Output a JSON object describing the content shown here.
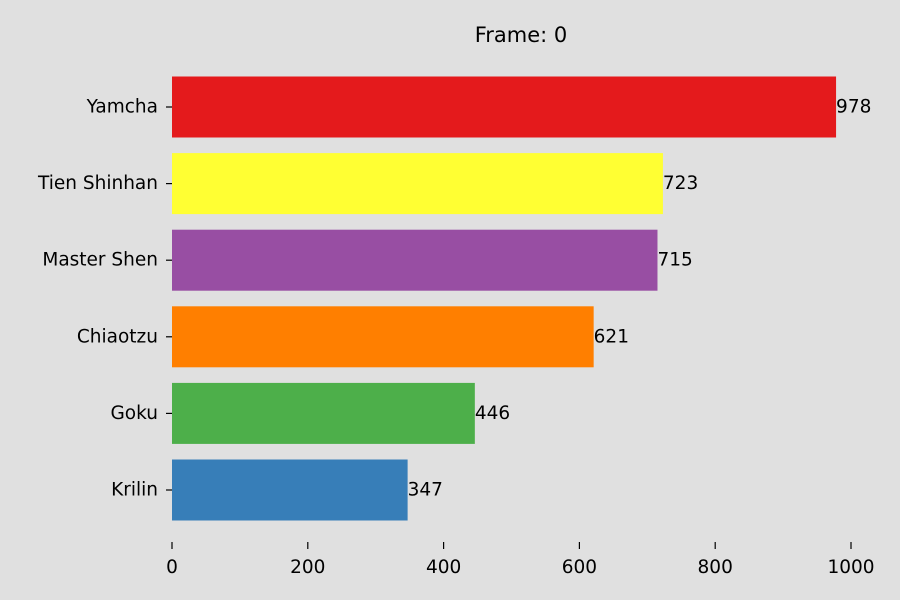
{
  "chart_data": {
    "type": "bar",
    "orientation": "horizontal",
    "title": "Frame: 0",
    "xlabel": "",
    "ylabel": "",
    "categories": [
      "Yamcha",
      "Tien Shinhan",
      "Master Shen",
      "Chiaotzu",
      "Goku",
      "Krilin"
    ],
    "values": [
      978,
      723,
      715,
      621,
      446,
      347
    ],
    "colors": [
      "#e41a1c",
      "#ffff33",
      "#984ea3",
      "#ff7f00",
      "#4daf4a",
      "#377eb8"
    ],
    "xlim": [
      0,
      1000
    ],
    "xticks": [
      0,
      200,
      400,
      600,
      800,
      1000
    ],
    "xtick_labels": [
      "0",
      "200",
      "400",
      "600",
      "800",
      "1000"
    ],
    "grid": false,
    "legend": "none",
    "background": "#e0e0e0"
  }
}
